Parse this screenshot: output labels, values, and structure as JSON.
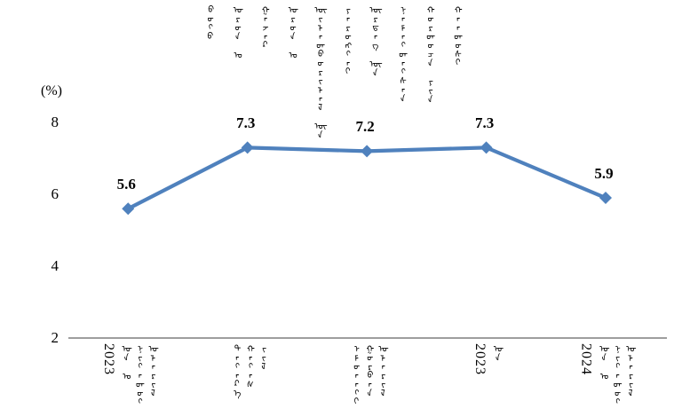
{
  "chart_data": {
    "type": "line",
    "title": "ᠪᠦᠬᠦ ᠣᠷᠣᠨ ᠤ ᠭᠠᠵᠠᠷ ᠣᠷᠣᠨ ᠤ ᠦᠢᠯᠡᠳᠪᠦᠷᠢᠯᠡᠯ ᠦᠨ ᠶᠡᠷᠦᠩᠬᠡᠢ ᠥᠷᠲᠡᠭ ᠦᠨ ᠨᠡᠮᠡᠭᠳᠡᠭᠰᠡᠨ ᠬᠤᠷᠳᠤᠴᠠ ᠶᠢᠨ ᠬᠠᠨᠳᠤᠰᠢ",
    "title_words": [
      "ᠪᠦᠬᠦ",
      "ᠣᠷᠣᠨ ᠤ",
      "ᠭᠠᠵᠠᠷ",
      "ᠣᠷᠣᠨ ᠤ",
      "ᠦᠢᠯᠡᠳᠪᠦᠷᠢᠯᠡᠯ ᠦᠨ",
      "ᠶᠡᠷᠦᠩᠬᠡᠢ",
      "ᠥᠷᠲᠡᠭ ᠦᠨ",
      "ᠨᠡᠮᠡᠭᠳᠡᠭᠰᠡᠨ",
      "ᠬᠤᠷᠳᠤᠴᠠ ᠶᠢᠨ",
      "ᠬᠠᠨᠳᠤᠰᠢ"
    ],
    "ylabel": "(%)",
    "yticks": [
      "8",
      "6",
      "4",
      "2"
    ],
    "ylim": [
      2,
      8
    ],
    "categories": [
      "2023 ᠣᠨ ᠤ ᠨᠢᠭᠡᠳᠦᠭᠡᠷ ᠤᠯᠠᠷᠢᠯ",
      "ᠳᠡᠭᠡᠷ᠎ᠡ ᠬᠠᠭᠠᠰ ᠵᠢᠯ",
      "ᠡᠮᠦᠨᠡᠬᠢ ᠭᠤᠷᠪᠠᠨ ᠤᠯᠠᠷᠢᠯ",
      "2023 ᠣᠨ",
      "2024 ᠣᠨ ᠤ ᠨᠢᠭᠡᠳᠦᠭᠡᠷ ᠤᠯᠠᠷᠢᠯ"
    ],
    "x_labels": [
      {
        "year": "2023",
        "words": [
          "ᠣᠨ ᠤ",
          "ᠨᠢᠭᠡᠳᠦᠭᠡᠷ",
          "ᠤᠯᠠᠷᠢᠯ"
        ]
      },
      {
        "year": "",
        "words": [
          "ᠳᠡᠭᠡᠷ᠎ᠡ",
          "ᠬᠠᠭᠠᠰ",
          "ᠵᠢᠯ"
        ]
      },
      {
        "year": "",
        "words": [
          "ᠡᠮᠦᠨᠡᠬᠢ",
          "ᠭᠤᠷᠪᠠᠨ",
          "ᠤᠯᠠᠷᠢᠯ"
        ]
      },
      {
        "year": "2023",
        "words": [
          "ᠣᠨ"
        ]
      },
      {
        "year": "2024",
        "words": [
          "ᠣᠨ ᠤ",
          "ᠨᠢᠭᠡᠳᠦᠭᠡᠷ",
          "ᠤᠯᠠᠷᠢᠯ"
        ]
      }
    ],
    "values": [
      5.6,
      7.3,
      7.2,
      7.3,
      5.9
    ],
    "data_labels": [
      "5.6",
      "7.3",
      "7.2",
      "7.3",
      "5.9"
    ],
    "line_color": "#4F81BD",
    "marker": "diamond",
    "axis_color": "#9E9E9E",
    "text_color": "#000000",
    "grid": false,
    "legend": "none"
  }
}
